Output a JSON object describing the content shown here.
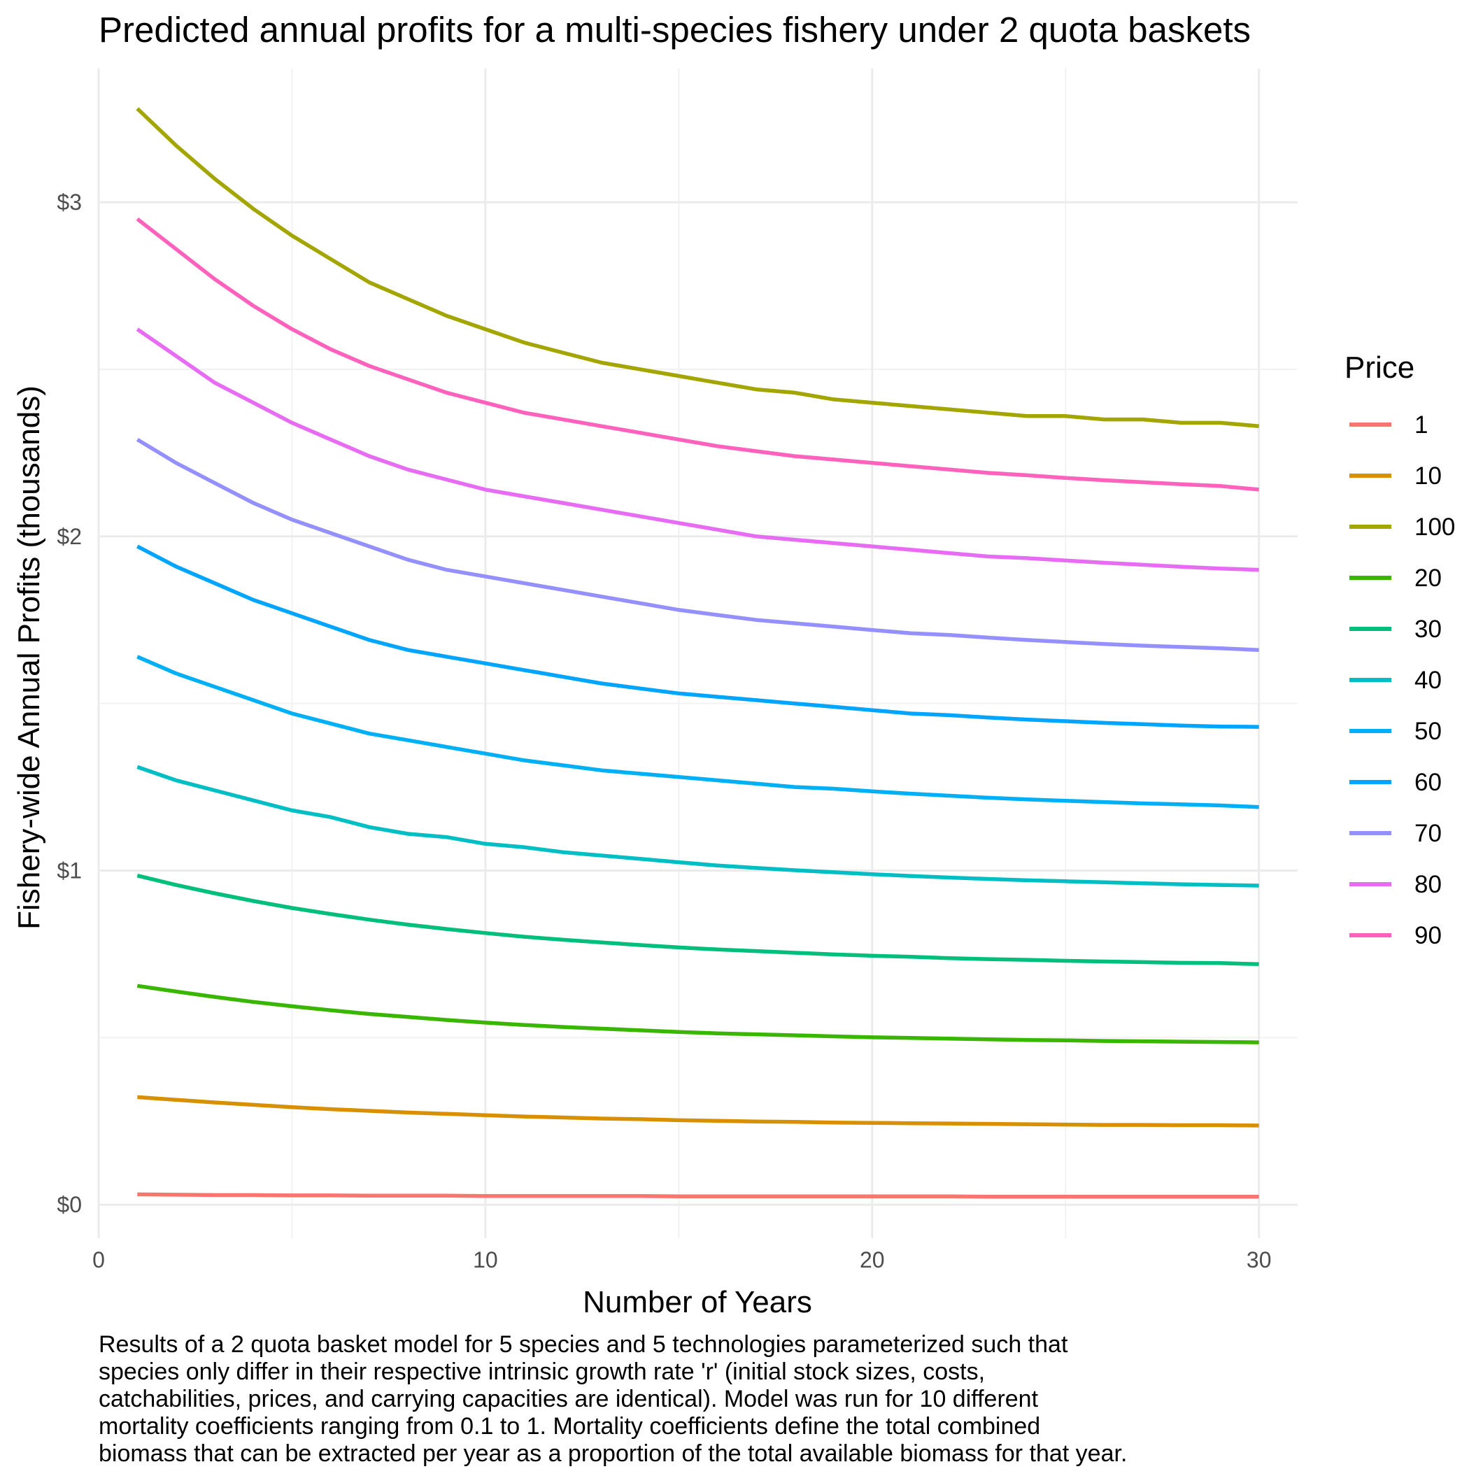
{
  "chart_data": {
    "type": "line",
    "title": "Predicted annual profits for a multi-species fishery under 2 quota baskets",
    "xlabel": "Number of Years",
    "ylabel": "Fishery-wide Annual Profits (thousands)",
    "xlim": [
      0,
      31
    ],
    "ylim": [
      -0.1,
      3.4
    ],
    "x_ticks": [
      0,
      10,
      20,
      30
    ],
    "x_tick_labels": [
      "0",
      "10",
      "20",
      "30"
    ],
    "y_ticks": [
      0,
      1,
      2,
      3
    ],
    "y_tick_labels": [
      "$0",
      "$1",
      "$2",
      "$3"
    ],
    "grid": true,
    "legend": {
      "title": "Price",
      "position": "right"
    },
    "x": [
      1,
      2,
      3,
      4,
      5,
      6,
      7,
      8,
      9,
      10,
      11,
      12,
      13,
      14,
      15,
      16,
      17,
      18,
      19,
      20,
      21,
      22,
      23,
      24,
      25,
      26,
      27,
      28,
      29,
      30
    ],
    "series": [
      {
        "name": "1",
        "color": "#F8766D",
        "values": [
          0.031,
          0.03,
          0.029,
          0.029,
          0.028,
          0.028,
          0.027,
          0.027,
          0.027,
          0.026,
          0.026,
          0.026,
          0.026,
          0.026,
          0.025,
          0.025,
          0.025,
          0.025,
          0.025,
          0.025,
          0.025,
          0.025,
          0.024,
          0.024,
          0.024,
          0.024,
          0.024,
          0.024,
          0.024,
          0.024
        ]
      },
      {
        "name": "10",
        "color": "#D89000",
        "values": [
          0.322,
          0.314,
          0.306,
          0.299,
          0.292,
          0.286,
          0.281,
          0.276,
          0.272,
          0.268,
          0.264,
          0.261,
          0.258,
          0.256,
          0.253,
          0.251,
          0.249,
          0.248,
          0.246,
          0.245,
          0.244,
          0.243,
          0.242,
          0.241,
          0.24,
          0.239,
          0.239,
          0.238,
          0.238,
          0.237
        ]
      },
      {
        "name": "100",
        "color": "#A3A500",
        "values": [
          3.28,
          3.17,
          3.07,
          2.98,
          2.9,
          2.83,
          2.76,
          2.71,
          2.66,
          2.62,
          2.58,
          2.55,
          2.52,
          2.5,
          2.48,
          2.46,
          2.44,
          2.43,
          2.41,
          2.4,
          2.39,
          2.38,
          2.37,
          2.36,
          2.36,
          2.35,
          2.35,
          2.34,
          2.34,
          2.33
        ]
      },
      {
        "name": "20",
        "color": "#39B600",
        "values": [
          0.655,
          0.638,
          0.622,
          0.607,
          0.594,
          0.582,
          0.571,
          0.562,
          0.553,
          0.545,
          0.538,
          0.532,
          0.527,
          0.522,
          0.517,
          0.513,
          0.51,
          0.507,
          0.504,
          0.501,
          0.499,
          0.497,
          0.495,
          0.493,
          0.492,
          0.49,
          0.489,
          0.488,
          0.487,
          0.486
        ]
      },
      {
        "name": "30",
        "color": "#00BF7D",
        "values": [
          0.985,
          0.957,
          0.932,
          0.909,
          0.888,
          0.87,
          0.853,
          0.838,
          0.825,
          0.813,
          0.802,
          0.793,
          0.785,
          0.777,
          0.77,
          0.764,
          0.759,
          0.754,
          0.749,
          0.745,
          0.742,
          0.738,
          0.735,
          0.733,
          0.73,
          0.728,
          0.726,
          0.724,
          0.723,
          0.72
        ]
      },
      {
        "name": "40",
        "color": "#00BFC4",
        "values": [
          1.31,
          1.27,
          1.24,
          1.21,
          1.18,
          1.16,
          1.13,
          1.11,
          1.1,
          1.08,
          1.07,
          1.055,
          1.045,
          1.035,
          1.025,
          1.015,
          1.008,
          1.001,
          0.995,
          0.989,
          0.984,
          0.979,
          0.975,
          0.971,
          0.968,
          0.965,
          0.962,
          0.959,
          0.957,
          0.955
        ]
      },
      {
        "name": "50",
        "color": "#00B0F6",
        "values": [
          1.64,
          1.59,
          1.55,
          1.51,
          1.47,
          1.44,
          1.41,
          1.39,
          1.37,
          1.35,
          1.33,
          1.315,
          1.3,
          1.29,
          1.28,
          1.27,
          1.26,
          1.25,
          1.245,
          1.237,
          1.23,
          1.224,
          1.218,
          1.213,
          1.209,
          1.205,
          1.201,
          1.198,
          1.195,
          1.19
        ]
      },
      {
        "name": "60",
        "color": "#00A5FF",
        "values": [
          1.97,
          1.91,
          1.86,
          1.81,
          1.77,
          1.73,
          1.69,
          1.66,
          1.64,
          1.62,
          1.6,
          1.58,
          1.56,
          1.545,
          1.53,
          1.52,
          1.51,
          1.5,
          1.49,
          1.48,
          1.47,
          1.465,
          1.458,
          1.452,
          1.447,
          1.442,
          1.438,
          1.434,
          1.431,
          1.43
        ]
      },
      {
        "name": "70",
        "color": "#9590FF",
        "values": [
          2.29,
          2.22,
          2.16,
          2.1,
          2.05,
          2.01,
          1.97,
          1.93,
          1.9,
          1.88,
          1.86,
          1.84,
          1.82,
          1.8,
          1.78,
          1.765,
          1.75,
          1.74,
          1.73,
          1.72,
          1.71,
          1.705,
          1.697,
          1.69,
          1.684,
          1.678,
          1.673,
          1.669,
          1.665,
          1.66
        ]
      },
      {
        "name": "80",
        "color": "#E76BF3",
        "values": [
          2.62,
          2.54,
          2.46,
          2.4,
          2.34,
          2.29,
          2.24,
          2.2,
          2.17,
          2.14,
          2.12,
          2.1,
          2.08,
          2.06,
          2.04,
          2.02,
          2.0,
          1.99,
          1.98,
          1.97,
          1.96,
          1.95,
          1.94,
          1.935,
          1.928,
          1.921,
          1.915,
          1.909,
          1.904,
          1.9
        ]
      },
      {
        "name": "90",
        "color": "#FF62BC",
        "values": [
          2.95,
          2.86,
          2.77,
          2.69,
          2.62,
          2.56,
          2.51,
          2.47,
          2.43,
          2.4,
          2.37,
          2.35,
          2.33,
          2.31,
          2.29,
          2.27,
          2.255,
          2.24,
          2.23,
          2.22,
          2.21,
          2.2,
          2.19,
          2.183,
          2.175,
          2.168,
          2.162,
          2.156,
          2.151,
          2.14
        ]
      }
    ]
  },
  "caption": "Results of a 2 quota basket model for 5 species and 5 technologies parameterized such that\nspecies only differ in their respective intrinsic growth rate 'r' (initial stock sizes, costs,\ncatchabilities, prices, and carrying capacities are identical). Model was run for 10 different\nmortality coefficients ranging from 0.1 to 1. Mortality coefficients define the total combined\nbiomass that can be extracted per year as a proportion of the total available biomass for that year."
}
